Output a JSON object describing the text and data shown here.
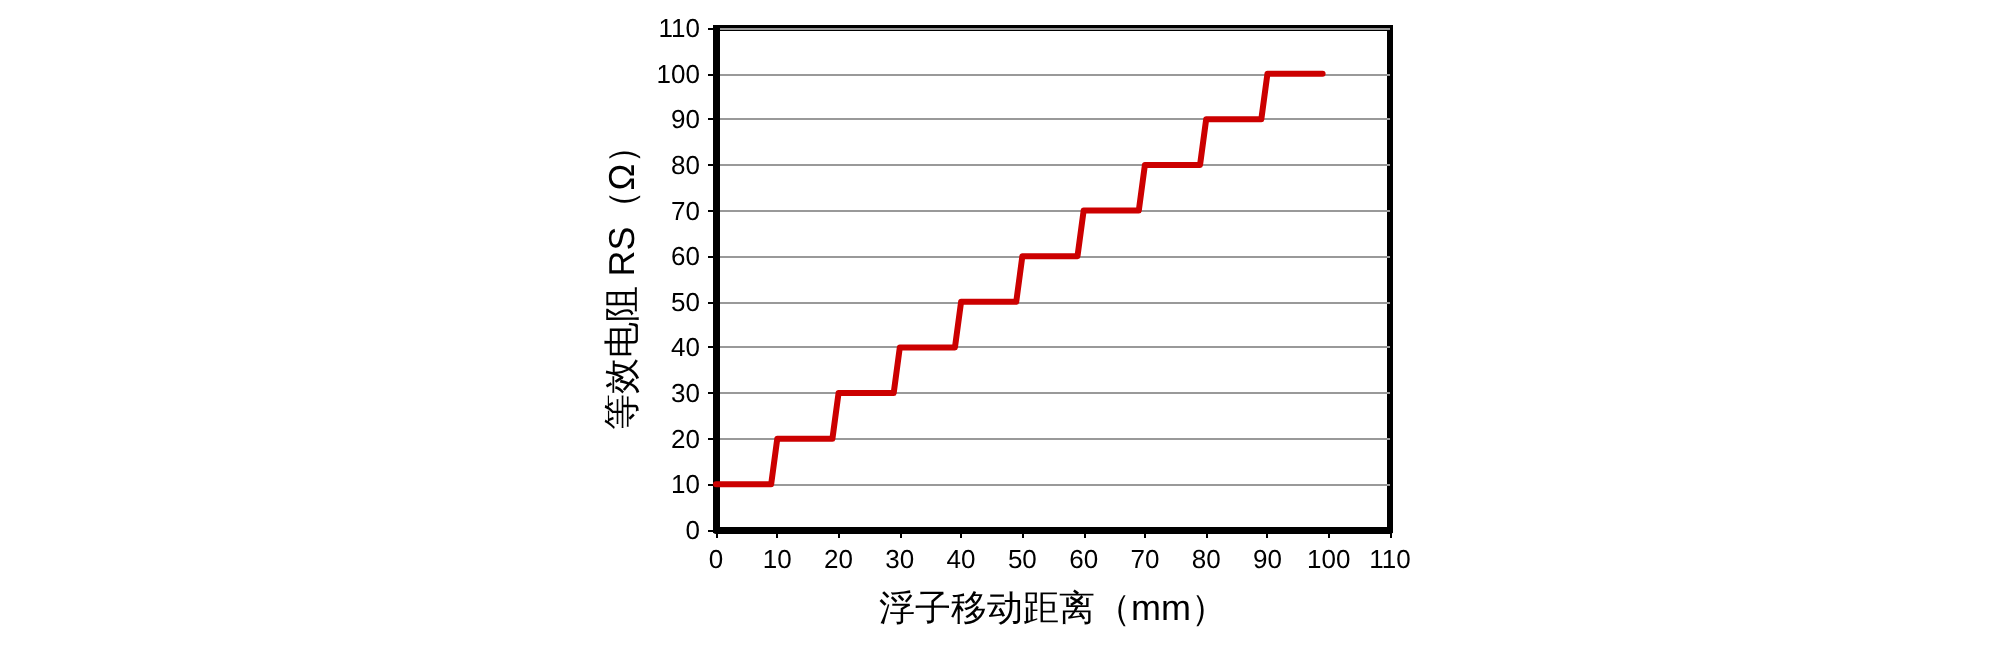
{
  "chart_data": {
    "type": "line",
    "xlabel": "浮子移动距离（mm）",
    "ylabel": "等效电阻 RS（Ω）",
    "xlim": [
      0,
      110
    ],
    "xticks": [
      0,
      10,
      20,
      30,
      40,
      50,
      60,
      70,
      80,
      90,
      100,
      110
    ],
    "ylim": [
      0,
      110
    ],
    "yticks": [
      0,
      10,
      20,
      30,
      40,
      50,
      60,
      70,
      80,
      90,
      100,
      110
    ],
    "grid": "y",
    "marker": "none",
    "line_style": "solid",
    "series": [
      {
        "color": "#cc0000",
        "x": [
          0,
          9,
          10,
          19,
          20,
          29,
          30,
          39,
          40,
          49,
          50,
          59,
          60,
          69,
          70,
          79,
          80,
          89,
          90,
          99
        ],
        "values": [
          10,
          10,
          20,
          20,
          30,
          30,
          40,
          40,
          50,
          50,
          60,
          60,
          70,
          70,
          80,
          80,
          90,
          90,
          100,
          100
        ]
      }
    ]
  }
}
